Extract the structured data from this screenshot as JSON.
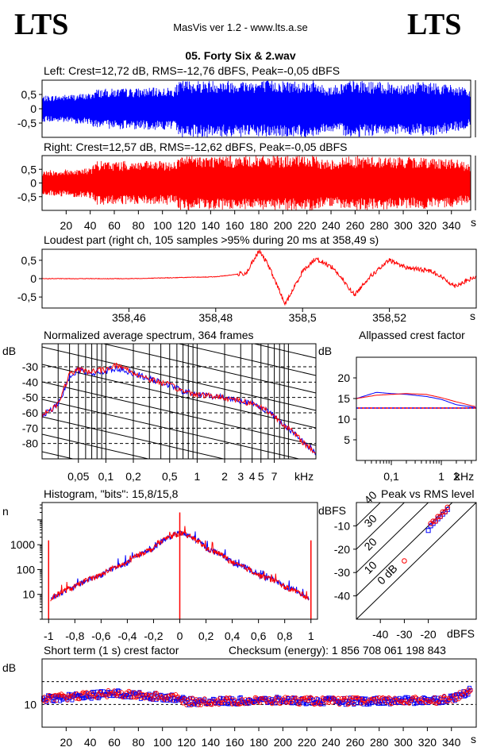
{
  "header": {
    "logo_left": "LTS",
    "logo_right": "LTS",
    "app_title": "MasVis ver 1.2 - www.lts.a.se",
    "file_name": "05. Forty Six & 2.wav"
  },
  "panels": {
    "left": {
      "title": "Left: Crest=12,72 dB, RMS=-12,76 dBFS, Peak=-0,05 dBFS",
      "y_ticks": [
        "0,5",
        "0",
        "-0,5"
      ]
    },
    "right": {
      "title": "Right: Crest=12,57 dB, RMS=-12,62 dBFS, Peak=-0,05 dBFS",
      "y_ticks": [
        "0,5",
        "0",
        "-0,5"
      ],
      "x_ticks": [
        "20",
        "40",
        "60",
        "80",
        "100",
        "120",
        "140",
        "160",
        "180",
        "200",
        "220",
        "240",
        "260",
        "280",
        "300",
        "320",
        "340"
      ],
      "x_unit": "s"
    },
    "loudest": {
      "title": "Loudest part (right ch, 105 samples >95% during 20 ms at 358,49 s)",
      "y_ticks": [
        "0,5",
        "0",
        "-0,5"
      ],
      "x_ticks": [
        "358,46",
        "358,48",
        "358,5",
        "358,52"
      ],
      "x_unit": "s"
    },
    "spectrum": {
      "title": "Normalized average spectrum, 364 frames",
      "y_unit": "dB",
      "y_ticks": [
        "-30",
        "-40",
        "-50",
        "-60",
        "-70",
        "-80"
      ],
      "x_ticks": [
        "0,05",
        "0,1",
        "0,2",
        "0,5",
        "1",
        "2",
        "3",
        "4",
        "5",
        "7"
      ],
      "x_unit": "kHz"
    },
    "allpass": {
      "title": "Allpassed crest factor",
      "y_unit": "dB",
      "y_ticks": [
        "20",
        "15",
        "10",
        "5"
      ],
      "x_ticks": [
        "0,1",
        "1",
        "2"
      ],
      "x_unit": "kHz"
    },
    "histogram": {
      "title": "Histogram, \"bits\": 15,8/15,8",
      "y_unit": "n",
      "y_ticks": [
        "1000",
        "100",
        "10"
      ],
      "x_ticks": [
        "-1",
        "-0,8",
        "-0,6",
        "-0,4",
        "-0,2",
        "0",
        "0,2",
        "0,4",
        "0,6",
        "0,8",
        "1"
      ]
    },
    "peak_rms": {
      "title": "Peak vs RMS level",
      "y_unit": "dBFS",
      "y_ticks": [
        "-10",
        "-20",
        "-30",
        "-40"
      ],
      "x_ticks": [
        "-40",
        "-30",
        "-20"
      ],
      "x_unit": "dBFS",
      "diag_labels": [
        "40",
        "30",
        "20",
        "10",
        "0 dB"
      ]
    },
    "short_term": {
      "title": "Short term (1 s) crest factor",
      "checksum": "Checksum (energy):  1 856 708 061 198 843",
      "y_unit": "dB",
      "y_ticks": [
        "10"
      ],
      "x_ticks": [
        "20",
        "40",
        "60",
        "80",
        "100",
        "120",
        "140",
        "160",
        "180",
        "200",
        "220",
        "240",
        "260",
        "280",
        "300",
        "320",
        "340"
      ],
      "x_unit": "s"
    }
  },
  "colors": {
    "left": "#0000ff",
    "right": "#ff0000",
    "axis": "#000000"
  },
  "chart_data": [
    {
      "type": "line",
      "name": "left-waveform",
      "xlim": [
        0,
        356
      ],
      "ylim": [
        -1,
        1
      ],
      "envelope_x": [
        0,
        40,
        45,
        110,
        115,
        225,
        235,
        245,
        255,
        300,
        320,
        340,
        350,
        356
      ],
      "envelope_peak": [
        0.45,
        0.55,
        0.7,
        0.75,
        1.0,
        1.0,
        0.8,
        0.85,
        1.0,
        0.9,
        0.95,
        0.85,
        0.75,
        0.6
      ]
    },
    {
      "type": "line",
      "name": "right-waveform",
      "xlim": [
        0,
        356
      ],
      "ylim": [
        -1,
        1
      ],
      "envelope_x": [
        0,
        40,
        45,
        110,
        115,
        225,
        235,
        245,
        255,
        300,
        320,
        340,
        350,
        356
      ],
      "envelope_peak": [
        0.45,
        0.55,
        0.8,
        0.8,
        1.0,
        1.0,
        0.85,
        0.9,
        1.0,
        0.95,
        0.95,
        0.9,
        0.8,
        0.65
      ]
    },
    {
      "type": "line",
      "name": "loudest-part",
      "xlim": [
        358.44,
        358.54
      ],
      "ylim": [
        -0.8,
        0.8
      ],
      "x": [
        358.44,
        358.46,
        358.48,
        358.487,
        358.49,
        358.492,
        358.496,
        358.5,
        358.503,
        358.507,
        358.512,
        358.515,
        358.52,
        358.524,
        358.53,
        358.535,
        358.54
      ],
      "y": [
        0.0,
        0.0,
        0.05,
        0.15,
        0.75,
        0.4,
        -0.7,
        0.2,
        0.55,
        0.3,
        -0.45,
        0.0,
        0.5,
        0.3,
        0.2,
        -0.2,
        0.05
      ]
    },
    {
      "type": "line",
      "name": "average-spectrum",
      "xlim": [
        0.02,
        20
      ],
      "ylim": [
        -90,
        -15
      ],
      "x": [
        0.02,
        0.03,
        0.04,
        0.05,
        0.07,
        0.1,
        0.12,
        0.15,
        0.2,
        0.3,
        0.5,
        0.7,
        1,
        2,
        3,
        5,
        7,
        10,
        15,
        20
      ],
      "left": [
        -62,
        -55,
        -36,
        -32,
        -34,
        -33,
        -31,
        -32,
        -34,
        -38,
        -42,
        -46,
        -48,
        -50,
        -52,
        -56,
        -62,
        -70,
        -80,
        -86
      ],
      "right": [
        -62,
        -54,
        -35,
        -32,
        -33,
        -32,
        -29,
        -30,
        -34,
        -38,
        -42,
        -46,
        -48,
        -50,
        -52,
        -56,
        -62,
        -70,
        -80,
        -86
      ]
    },
    {
      "type": "line",
      "name": "allpassed-crest",
      "xlim": [
        0.02,
        5
      ],
      "ylim": [
        0,
        25
      ],
      "x": [
        0.02,
        0.05,
        0.1,
        0.2,
        0.5,
        1,
        2,
        5
      ],
      "left": [
        15.0,
        16.5,
        16.2,
        16.0,
        15.5,
        14.8,
        13.5,
        12.8
      ],
      "right": [
        15.0,
        15.8,
        16.0,
        16.2,
        16.0,
        15.2,
        14.2,
        13.0
      ],
      "reference": 12.7
    },
    {
      "type": "line",
      "name": "histogram",
      "xlim": [
        -1.05,
        1.05
      ],
      "ylim_log": [
        1,
        50000
      ],
      "x": [
        -1,
        -0.99,
        -0.8,
        -0.6,
        -0.4,
        -0.2,
        0,
        0.2,
        0.4,
        0.6,
        0.8,
        0.99,
        1
      ],
      "y": [
        1500,
        6,
        20,
        60,
        180,
        700,
        3000,
        700,
        180,
        60,
        20,
        6,
        1500
      ]
    },
    {
      "type": "scatter",
      "name": "peak-vs-rms",
      "xlim": [
        -50,
        0
      ],
      "ylim": [
        -50,
        0
      ],
      "left_rms": [
        -19,
        -18,
        -17,
        -16,
        -15,
        -14,
        -13,
        -12,
        -20
      ],
      "left_peak": [
        -10,
        -9,
        -8,
        -7,
        -6,
        -5,
        -4,
        -3,
        -12
      ],
      "right_rms": [
        -19,
        -18,
        -17,
        -16,
        -15,
        -14,
        -13,
        -12,
        -30
      ],
      "right_peak": [
        -9,
        -8,
        -8,
        -6,
        -6,
        -4,
        -4,
        -2,
        -25
      ]
    },
    {
      "type": "scatter",
      "name": "short-term-crest",
      "xlim": [
        0,
        356
      ],
      "ylim": [
        5,
        20
      ],
      "ref_lines": [
        10,
        15
      ],
      "trend_x": [
        0,
        40,
        60,
        80,
        110,
        120,
        200,
        240,
        300,
        330,
        345,
        352,
        356
      ],
      "trend_y": [
        11.2,
        12.0,
        12.4,
        12.0,
        11.5,
        10.6,
        10.9,
        10.7,
        10.8,
        11.0,
        11.6,
        12.6,
        13.2
      ]
    }
  ]
}
